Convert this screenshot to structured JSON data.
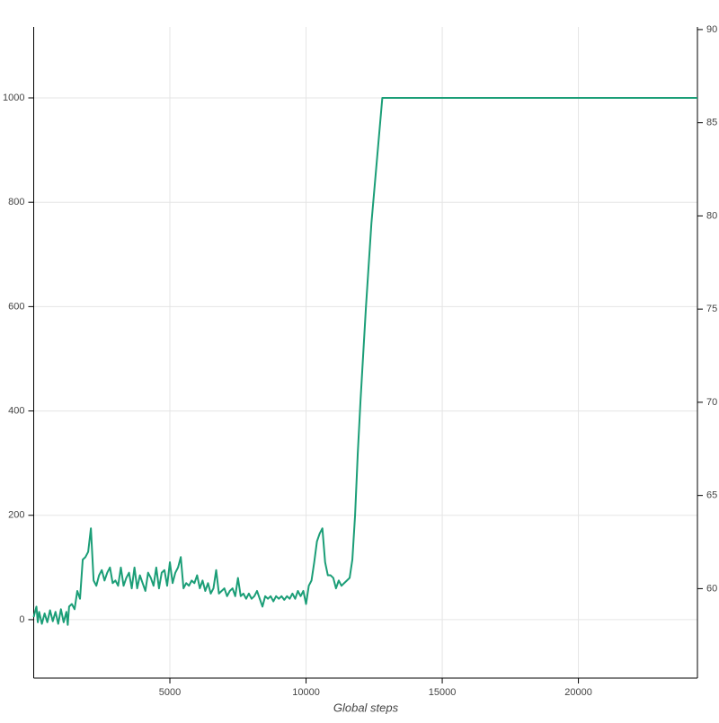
{
  "chart_data": {
    "type": "line",
    "x_label": "Global steps",
    "color": "#1b9e77",
    "grid": true,
    "x": [
      0,
      100,
      150,
      200,
      300,
      400,
      500,
      600,
      700,
      800,
      900,
      1000,
      1100,
      1200,
      1250,
      1300,
      1400,
      1500,
      1600,
      1700,
      1800,
      1900,
      2000,
      2100,
      2200,
      2300,
      2400,
      2500,
      2600,
      2700,
      2800,
      2900,
      3000,
      3100,
      3200,
      3300,
      3400,
      3500,
      3600,
      3700,
      3800,
      3900,
      4000,
      4100,
      4200,
      4300,
      4400,
      4500,
      4600,
      4700,
      4800,
      4900,
      5000,
      5100,
      5200,
      5300,
      5400,
      5500,
      5600,
      5700,
      5800,
      5900,
      6000,
      6100,
      6200,
      6300,
      6400,
      6500,
      6600,
      6700,
      6800,
      6900,
      7000,
      7100,
      7200,
      7300,
      7400,
      7500,
      7600,
      7700,
      7800,
      7900,
      8000,
      8100,
      8200,
      8300,
      8400,
      8500,
      8600,
      8700,
      8800,
      8900,
      9000,
      9100,
      9200,
      9300,
      9400,
      9500,
      9600,
      9700,
      9800,
      9900,
      10000,
      10100,
      10200,
      10300,
      10400,
      10500,
      10600,
      10700,
      10800,
      10900,
      11000,
      11100,
      11200,
      11300,
      11400,
      11500,
      11600,
      11700,
      11800,
      11900,
      12000,
      12200,
      12400,
      12600,
      12800,
      24370
    ],
    "values": [
      5,
      25,
      -5,
      15,
      -8,
      12,
      -5,
      18,
      -3,
      15,
      -8,
      20,
      -5,
      15,
      -10,
      25,
      30,
      20,
      55,
      40,
      115,
      120,
      130,
      175,
      75,
      65,
      85,
      95,
      75,
      90,
      100,
      70,
      75,
      65,
      100,
      65,
      80,
      90,
      60,
      100,
      60,
      85,
      70,
      55,
      90,
      80,
      65,
      100,
      60,
      90,
      95,
      65,
      110,
      70,
      90,
      100,
      120,
      60,
      70,
      65,
      75,
      70,
      85,
      60,
      75,
      55,
      70,
      50,
      60,
      95,
      50,
      55,
      60,
      45,
      55,
      60,
      45,
      80,
      45,
      50,
      40,
      50,
      40,
      45,
      55,
      40,
      25,
      45,
      40,
      45,
      35,
      45,
      40,
      45,
      38,
      45,
      40,
      50,
      40,
      55,
      45,
      55,
      30,
      65,
      75,
      110,
      150,
      165,
      175,
      110,
      85,
      85,
      80,
      60,
      75,
      65,
      70,
      75,
      80,
      115,
      200,
      320,
      420,
      600,
      760,
      880,
      1000,
      1000
    ],
    "xlim": [
      0,
      24370
    ],
    "xticks": [
      5000,
      10000,
      15000,
      20000
    ],
    "ylim": [
      -112,
      1136
    ],
    "yticks": [
      0,
      200,
      400,
      600,
      800,
      1000
    ],
    "y2lim": [
      55.2,
      90.14
    ],
    "y2ticks": [
      60,
      65,
      70,
      75,
      80,
      85,
      90
    ]
  }
}
